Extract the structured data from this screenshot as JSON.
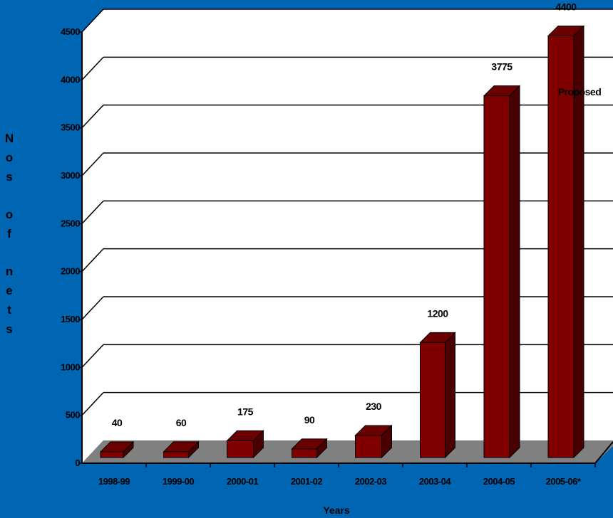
{
  "chart_data": {
    "type": "bar",
    "title": "",
    "xlabel": "Years",
    "ylabel": "Nos of nets",
    "ylim": [
      0,
      4500
    ],
    "yticks": [
      0,
      500,
      1000,
      1500,
      2000,
      2500,
      3000,
      3500,
      4000,
      4500
    ],
    "grid": true,
    "categories": [
      "1998-99",
      "1999-00",
      "2000-01",
      "2001-02",
      "2002-03",
      "2003-04",
      "2004-05",
      "2005-06*"
    ],
    "values": [
      40,
      60,
      175,
      90,
      230,
      1200,
      3775,
      4400
    ],
    "data_labels": [
      "40",
      "60",
      "175",
      "90",
      "230",
      "1200",
      "3775",
      "4400"
    ],
    "annotations": [
      {
        "text": "Proposed",
        "category": "2005-06*"
      }
    ],
    "colors": {
      "background": "#0066b3",
      "plot_wall": "#ffffff",
      "floor": "#808080",
      "bar_front": "#800000",
      "bar_top": "#6b0000",
      "bar_side": "#4a0000"
    }
  }
}
